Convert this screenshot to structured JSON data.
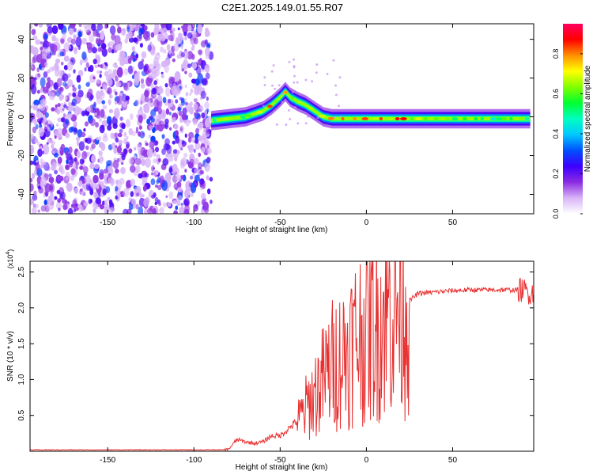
{
  "title": "C2E1.2025.149.01.55.R07",
  "chart_data": [
    {
      "type": "heatmap",
      "title": "C2E1.2025.149.01.55.R07",
      "xlabel": "Height of straight line (km)",
      "ylabel": "Frequency (Hz)",
      "xlim": [
        -195,
        97
      ],
      "ylim": [
        -50,
        48
      ],
      "xticks": [
        -150,
        -100,
        -50,
        0,
        50
      ],
      "yticks": [
        -40,
        -20,
        0,
        20,
        40
      ],
      "colorbar": {
        "label": "Normalized spectral amplitude",
        "range": [
          0,
          0.95
        ],
        "ticks": [
          0.0,
          0.2,
          0.4,
          0.6,
          0.8
        ],
        "colormap": [
          "#ffffff",
          "#d8b4f8",
          "#8a2be2",
          "#3c00ff",
          "#0050ff",
          "#00c8ff",
          "#00ffc0",
          "#00ff30",
          "#80ff00",
          "#ffff00",
          "#ff9000",
          "#ff0000",
          "#ff0060"
        ]
      },
      "noise_region_x": [
        -195,
        -90
      ],
      "ridge": {
        "x": [
          -90,
          -80,
          -70,
          -60,
          -55,
          -50,
          -47,
          -44,
          -40,
          -35,
          -30,
          -25,
          -20,
          -15,
          -10,
          0,
          10,
          20,
          40,
          60,
          80,
          95
        ],
        "y": [
          -2,
          -1,
          0,
          3,
          6,
          10,
          13,
          10,
          8,
          6,
          3,
          0,
          -1,
          -1,
          -1,
          -1,
          -1,
          -1,
          -1,
          -1,
          -1,
          -1
        ],
        "amplitude": [
          0.5,
          0.6,
          0.65,
          0.7,
          0.75,
          0.8,
          0.85,
          0.75,
          0.7,
          0.65,
          0.7,
          0.75,
          0.8,
          0.8,
          0.85,
          0.8,
          0.75,
          0.8,
          0.6,
          0.55,
          0.55,
          0.6
        ]
      }
    },
    {
      "type": "line",
      "xlabel": "Height of straight line (km)",
      "ylabel": "SNR (10 * v/v)",
      "multiplier": "(x10^4)",
      "xlim": [
        -195,
        97
      ],
      "ylim": [
        0,
        2.65
      ],
      "xticks": [
        -150,
        -100,
        -50,
        0,
        50
      ],
      "yticks": [
        0.5,
        1.0,
        1.5,
        2.0,
        2.5
      ],
      "color": "#e83030",
      "series": [
        {
          "x": [
            -195,
            -80,
            -75,
            -70,
            -65,
            -60,
            -55,
            -50,
            -45,
            -40,
            -35,
            -30,
            -25,
            -20,
            -15,
            -10,
            -5,
            0,
            5,
            10,
            15,
            20,
            25,
            30,
            40,
            50,
            60,
            70,
            80,
            90,
            97
          ],
          "y": [
            0.02,
            0.02,
            0.15,
            0.12,
            0.1,
            0.12,
            0.2,
            0.2,
            0.3,
            0.4,
            0.6,
            0.8,
            1.0,
            1.2,
            1.3,
            1.45,
            1.6,
            1.7,
            1.75,
            1.9,
            2.0,
            2.05,
            2.1,
            2.2,
            2.22,
            2.24,
            2.25,
            2.25,
            2.25,
            2.25,
            2.2
          ]
        }
      ]
    }
  ]
}
